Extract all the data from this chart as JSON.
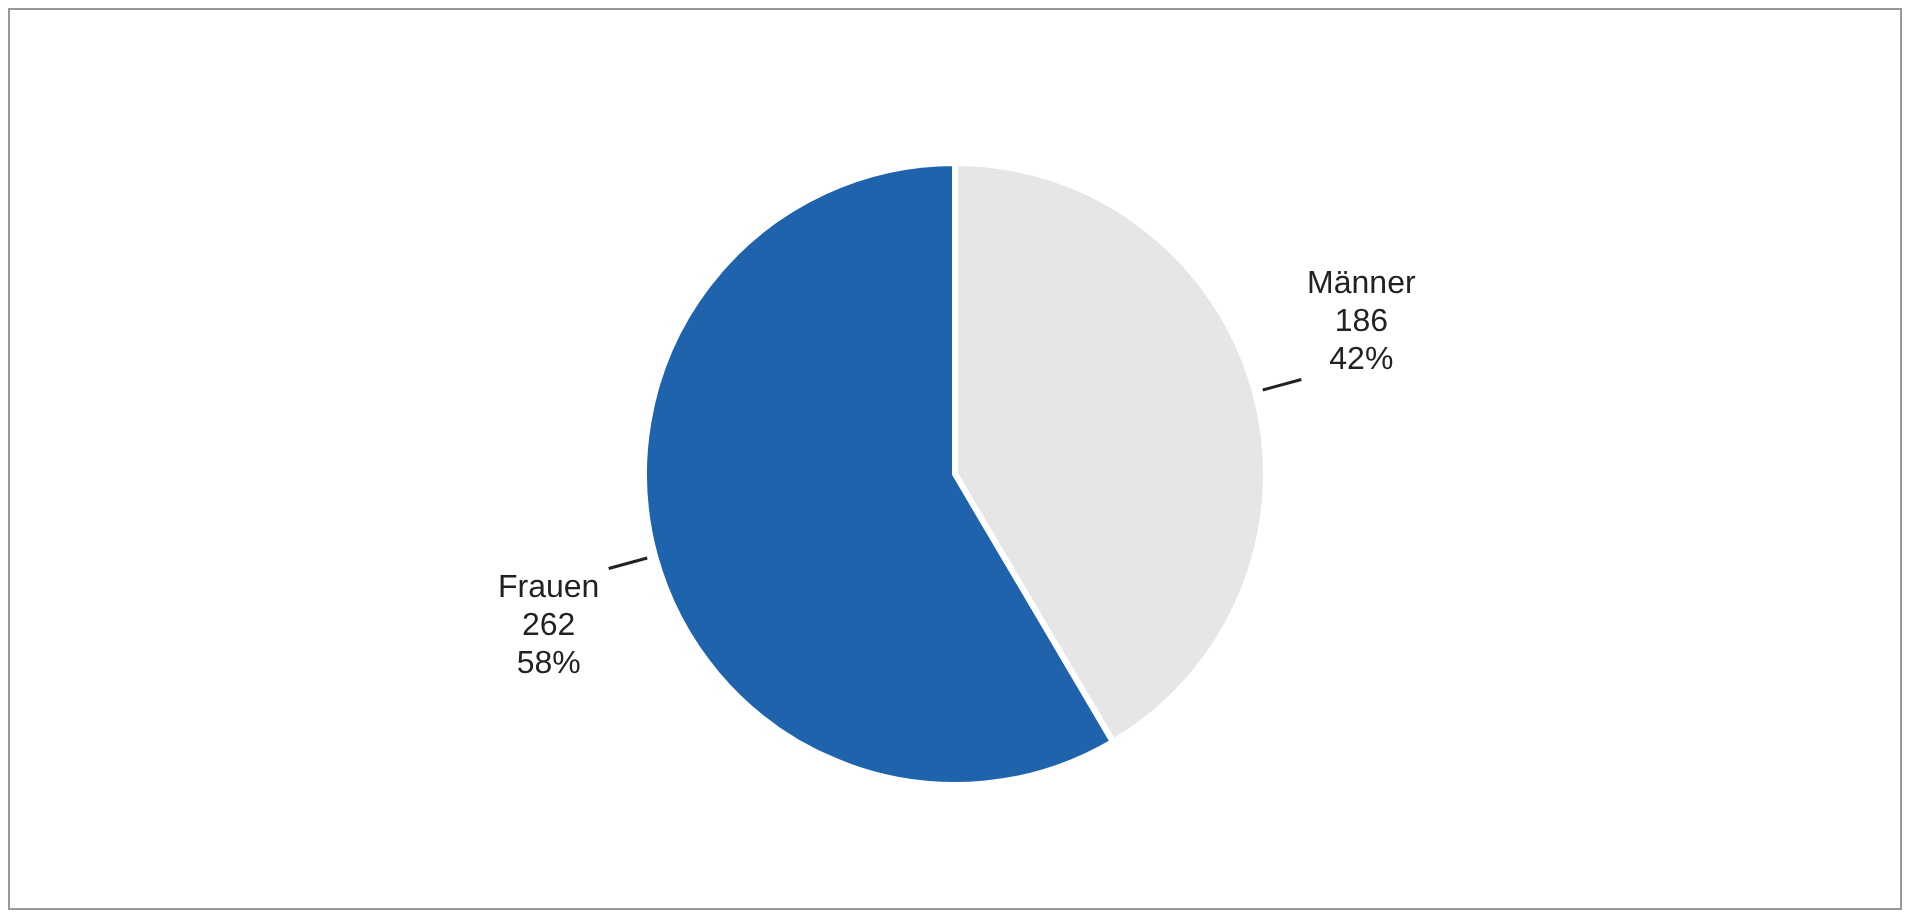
{
  "chart_data": {
    "type": "pie",
    "categories": [
      "Männer",
      "Frauen"
    ],
    "values": [
      186,
      262
    ],
    "colors": [
      "#e6e6e6",
      "#1f63ad"
    ],
    "value_labels": [
      "186\n42%",
      "262\n58%"
    ],
    "legend": false
  }
}
